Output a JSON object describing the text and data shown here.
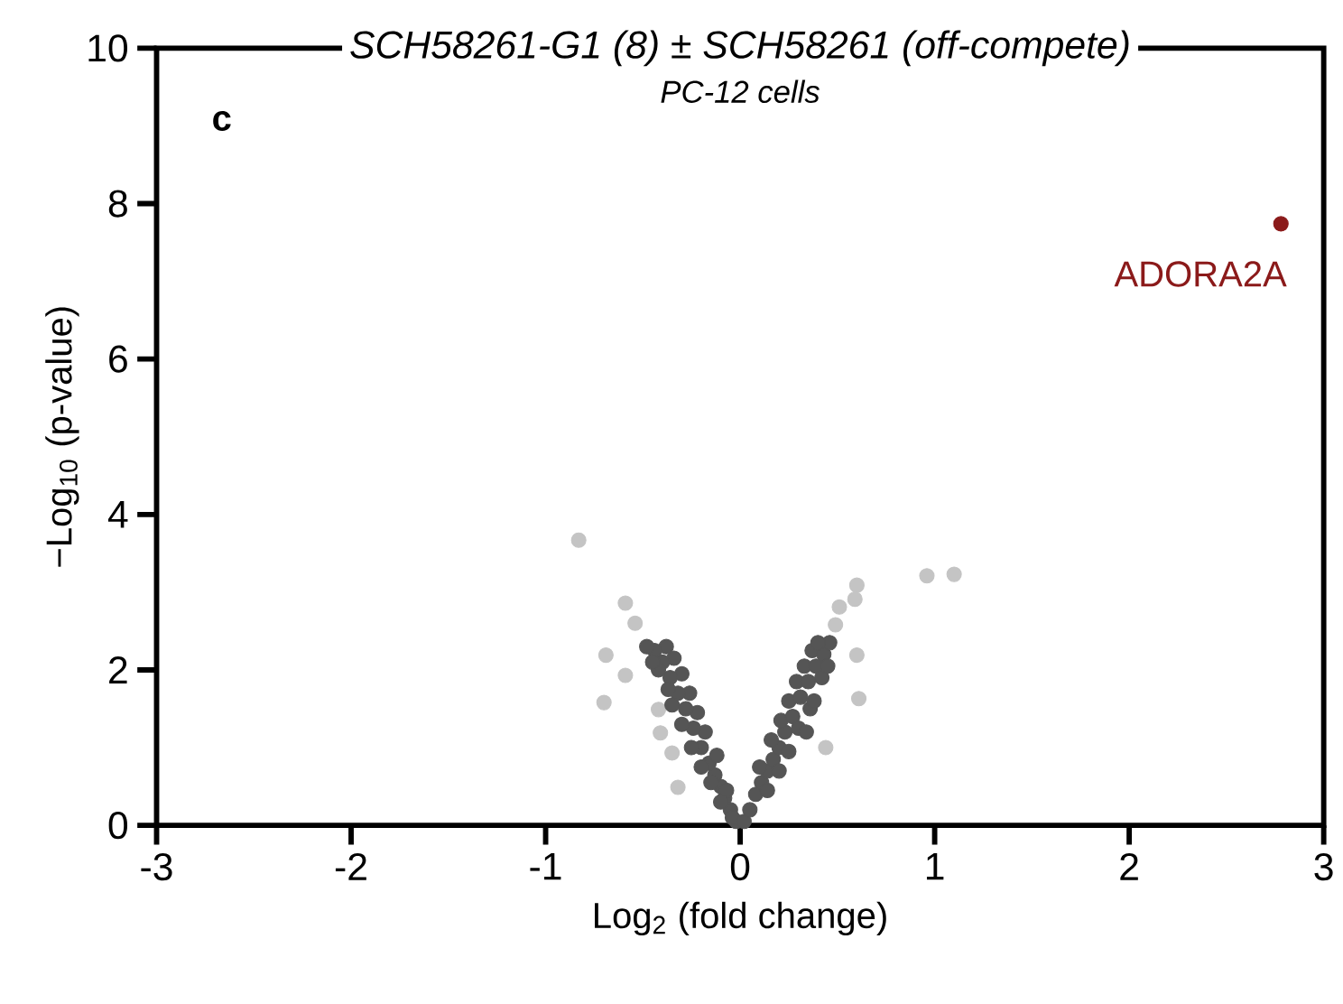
{
  "chart_data": {
    "type": "scatter",
    "title": "SCH58261-G1 (8) ± SCH58261 (off-compete)",
    "subtitle": "PC-12 cells",
    "xlabel": "Log$_{2}$ (fold change)",
    "ylabel": "−Log$_{10}$ (p-value)",
    "xlim": [
      -3,
      3
    ],
    "ylim": [
      0,
      10
    ],
    "xticks": [
      -3,
      -2,
      -1,
      0,
      1,
      2,
      3
    ],
    "yticks": [
      0,
      2,
      4,
      6,
      8,
      10
    ],
    "grid": false,
    "annotations": [
      "c",
      {
        "text": "ADORA2A",
        "x": 2.78,
        "y": 7.74
      }
    ],
    "series": [
      {
        "color": "#c4c4c4",
        "x": [
          -0.83,
          -0.59,
          -0.54,
          -0.69,
          -0.59,
          -0.7,
          -0.41,
          -0.35,
          -0.32,
          -0.42,
          0.96,
          1.1,
          0.6,
          0.59,
          0.51,
          0.49,
          0.6,
          0.61,
          0.44
        ],
        "values": [
          3.67,
          2.86,
          2.6,
          2.19,
          1.93,
          1.58,
          1.19,
          0.93,
          0.49,
          1.49,
          3.21,
          3.23,
          3.09,
          2.91,
          2.81,
          2.58,
          2.19,
          1.63,
          1.0
        ]
      },
      {
        "color": "#555555",
        "x": [
          -0.02,
          -0.05,
          -0.08,
          -0.04,
          -0.1,
          -0.13,
          -0.07,
          -0.16,
          -0.12,
          -0.2,
          -0.18,
          -0.24,
          -0.22,
          -0.28,
          -0.26,
          -0.32,
          -0.3,
          -0.36,
          -0.34,
          -0.4,
          -0.38,
          -0.44,
          -0.48,
          -0.42,
          -0.3,
          -0.35,
          -0.25,
          -0.2,
          -0.15,
          -0.1,
          -0.45,
          -0.37,
          0.02,
          0.05,
          0.08,
          0.11,
          0.14,
          0.1,
          0.17,
          0.2,
          0.16,
          0.23,
          0.21,
          0.27,
          0.25,
          0.31,
          0.29,
          0.35,
          0.33,
          0.39,
          0.37,
          0.43,
          0.46,
          0.4,
          0.3,
          0.36,
          0.25,
          0.2,
          0.14,
          0.42,
          0.38,
          0.34,
          0.45
        ],
        "values": [
          0.05,
          0.2,
          0.35,
          0.1,
          0.5,
          0.65,
          0.45,
          0.8,
          0.9,
          1.0,
          1.2,
          1.25,
          1.45,
          1.5,
          1.7,
          1.7,
          1.95,
          1.9,
          2.15,
          2.1,
          2.3,
          2.25,
          2.3,
          2.0,
          1.3,
          1.55,
          1.0,
          0.75,
          0.55,
          0.3,
          2.1,
          1.75,
          0.05,
          0.2,
          0.4,
          0.55,
          0.7,
          0.75,
          0.85,
          1.0,
          1.1,
          1.2,
          1.35,
          1.4,
          1.6,
          1.65,
          1.85,
          1.85,
          2.05,
          2.05,
          2.25,
          2.2,
          2.35,
          2.35,
          1.25,
          1.5,
          0.95,
          0.7,
          0.45,
          1.9,
          1.6,
          1.2,
          2.05
        ]
      },
      {
        "color": "#8b1a1a",
        "x": [
          2.78
        ],
        "values": [
          7.74
        ]
      }
    ]
  }
}
